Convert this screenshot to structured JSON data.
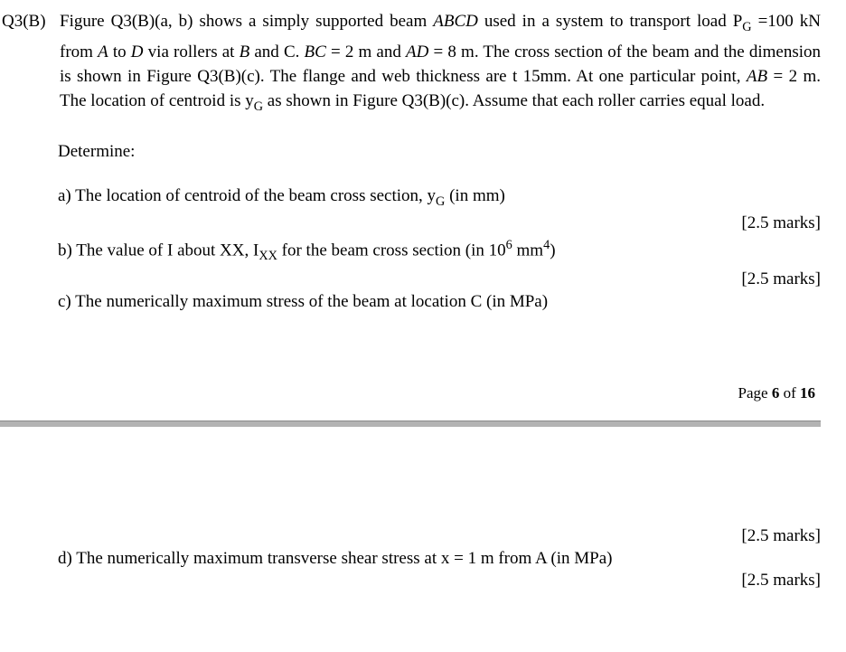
{
  "question": {
    "label": "Q3(B)",
    "intro_html": "Figure Q3(B)(a, b) shows a simply supported beam <span class=\"ital\">ABCD</span> used in a system to transport load P<sub>G</sub> =100 kN from <span class=\"ital\">A</span> to <span class=\"ital\">D</span> via rollers at <span class=\"ital\">B</span> and C. <span class=\"ital\">BC</span> = 2 m and <span class=\"ital\">AD</span> = 8 m. The cross section of the beam and the dimension is shown in Figure Q3(B)(c). The flange and web thickness are t 15mm. At one particular point, <span class=\"ital\">AB</span> = 2 m. The location of centroid is y<sub>G</sub> as shown in Figure Q3(B)(c). Assume that each roller carries equal load.",
    "determine": "Determine:",
    "parts": {
      "a": {
        "text_html": "a) The location of centroid of the beam cross section, y<sub>G</sub> (in mm)",
        "marks": "[2.5 marks]"
      },
      "b": {
        "text_html": "b) The value of I about XX, I<sub>XX</sub> for the beam cross section (in 10<sup>6</sup> mm<sup>4</sup>)",
        "marks": "[2.5 marks]"
      },
      "c": {
        "text_html": "c) The numerically maximum stress of the beam at location C (in MPa)",
        "marks": "[2.5 marks]"
      },
      "d": {
        "text_html": "d) The numerically maximum transverse shear stress at x = 1 m from A (in MPa)",
        "marks": "[2.5 marks]"
      }
    }
  },
  "page_footer": {
    "prefix": "Page ",
    "current": "6",
    "of": " of ",
    "total": "16"
  }
}
